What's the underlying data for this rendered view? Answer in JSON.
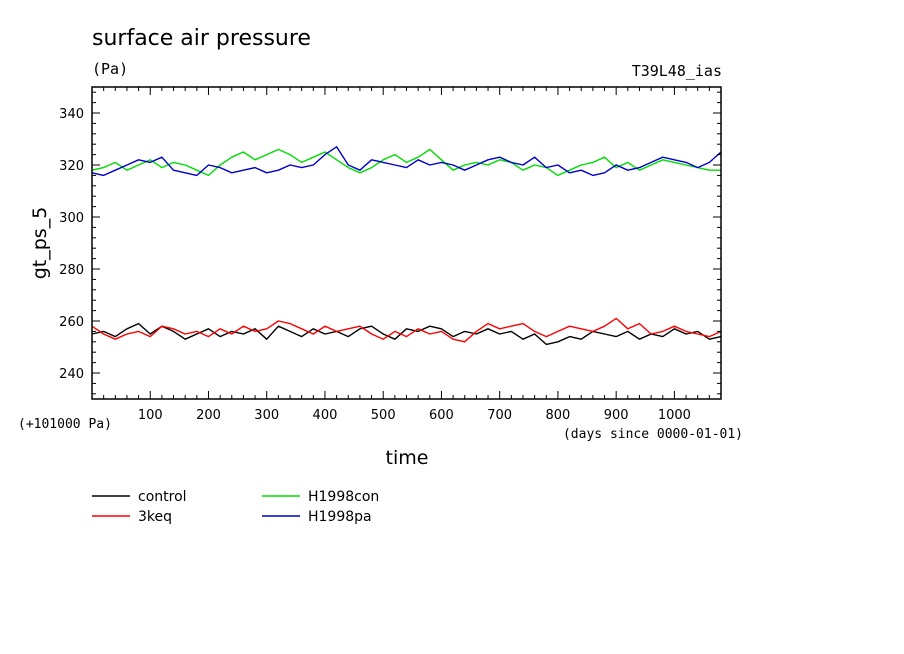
{
  "chart_data": {
    "type": "line",
    "title": "surface air pressure",
    "subtitle": "(Pa)",
    "model_label": "T39L48_ias",
    "xlabel": "time",
    "x_unit_note": "(days since 0000-01-01)",
    "ylabel": "gt_ps_5",
    "y_offset_note": "(+101000 Pa)",
    "xlim": [
      0,
      1080
    ],
    "ylim": [
      230,
      350
    ],
    "x_ticks": [
      "100",
      "200",
      "300",
      "400",
      "500",
      "600",
      "700",
      "800",
      "900",
      "1000"
    ],
    "y_ticks": [
      "240",
      "260",
      "280",
      "300",
      "320",
      "340"
    ],
    "grid": false,
    "legend_position": "bottom-left",
    "x": [
      0,
      20,
      40,
      60,
      80,
      100,
      120,
      140,
      160,
      180,
      200,
      220,
      240,
      260,
      280,
      300,
      320,
      340,
      360,
      380,
      400,
      420,
      440,
      460,
      480,
      500,
      520,
      540,
      560,
      580,
      600,
      620,
      640,
      660,
      680,
      700,
      720,
      740,
      760,
      780,
      800,
      820,
      840,
      860,
      880,
      900,
      920,
      940,
      960,
      980,
      1000,
      1020,
      1040,
      1060,
      1080
    ],
    "series": [
      {
        "name": "control",
        "color": "#000000",
        "values": [
          255,
          256,
          254,
          257,
          259,
          255,
          258,
          256,
          253,
          255,
          257,
          254,
          256,
          255,
          257,
          253,
          258,
          256,
          254,
          257,
          255,
          256,
          254,
          257,
          258,
          255,
          253,
          257,
          256,
          258,
          257,
          254,
          256,
          255,
          257,
          255,
          256,
          253,
          255,
          251,
          252,
          254,
          253,
          256,
          255,
          254,
          256,
          253,
          255,
          254,
          257,
          255,
          256,
          253,
          254
        ]
      },
      {
        "name": "3keq",
        "color": "#ff0000",
        "values": [
          258,
          255,
          253,
          255,
          256,
          254,
          258,
          257,
          255,
          256,
          254,
          257,
          255,
          258,
          256,
          257,
          260,
          259,
          257,
          255,
          258,
          256,
          257,
          258,
          255,
          253,
          256,
          254,
          257,
          255,
          256,
          253,
          252,
          256,
          259,
          257,
          258,
          259,
          256,
          254,
          256,
          258,
          257,
          256,
          258,
          261,
          257,
          259,
          255,
          256,
          258,
          256,
          255,
          254,
          256
        ]
      },
      {
        "name": "H1998con",
        "color": "#00dd00",
        "values": [
          318,
          319,
          321,
          318,
          320,
          322,
          319,
          321,
          320,
          318,
          316,
          320,
          323,
          325,
          322,
          324,
          326,
          324,
          321,
          323,
          325,
          322,
          319,
          317,
          319,
          322,
          324,
          321,
          323,
          326,
          322,
          318,
          320,
          321,
          320,
          322,
          321,
          318,
          320,
          319,
          316,
          318,
          320,
          321,
          323,
          319,
          321,
          318,
          320,
          322,
          321,
          320,
          319,
          318,
          318
        ]
      },
      {
        "name": "H1998pa",
        "color": "#0000cc",
        "values": [
          317,
          316,
          318,
          320,
          322,
          321,
          323,
          318,
          317,
          316,
          320,
          319,
          317,
          318,
          319,
          317,
          318,
          320,
          319,
          320,
          324,
          327,
          320,
          318,
          322,
          321,
          320,
          319,
          322,
          320,
          321,
          320,
          318,
          320,
          322,
          323,
          321,
          320,
          323,
          319,
          320,
          317,
          318,
          316,
          317,
          320,
          318,
          319,
          321,
          323,
          322,
          321,
          319,
          321,
          325
        ]
      }
    ]
  }
}
